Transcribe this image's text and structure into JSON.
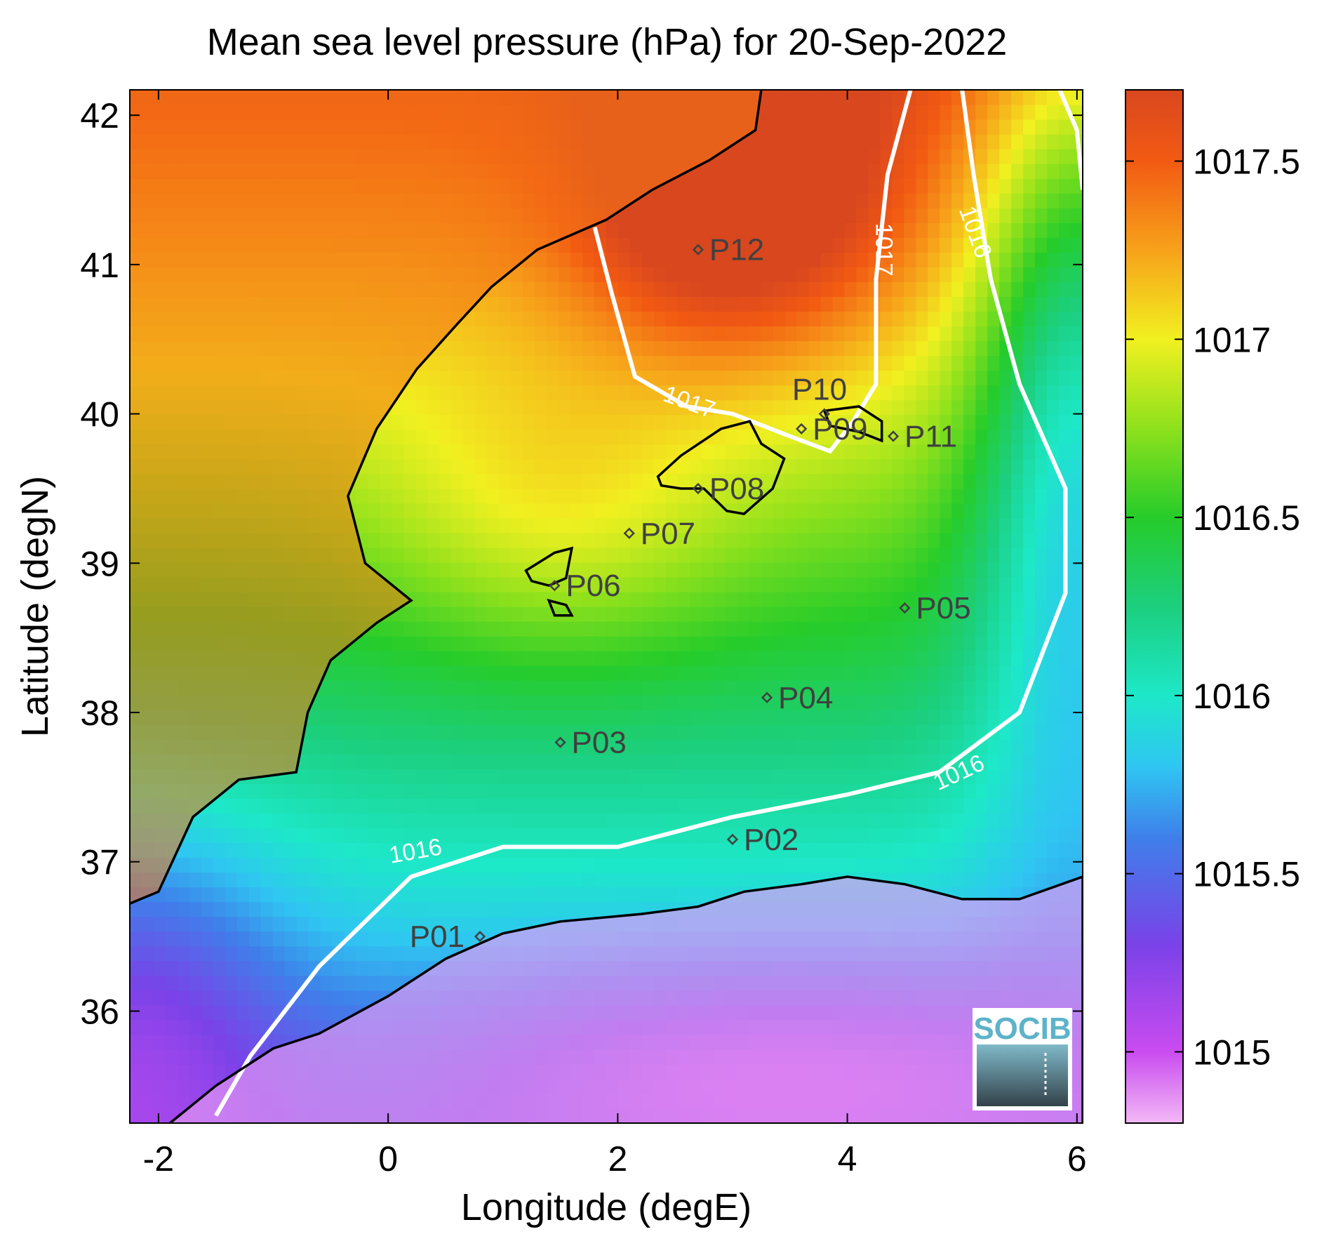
{
  "title": "Mean sea level pressure (hPa) for 20-Sep-2022",
  "logo_text": "SOCIB",
  "chart_data": {
    "type": "heatmap",
    "title": "Mean sea level pressure (hPa) for 20-Sep-2022",
    "xlabel": "Longitude (degE)",
    "ylabel": "Latitude (degN)",
    "xlim": [
      -2.25,
      6.05
    ],
    "ylim": [
      35.25,
      42.17
    ],
    "x_ticks": [
      {
        "value": -2,
        "label": "-2"
      },
      {
        "value": 0,
        "label": "0"
      },
      {
        "value": 2,
        "label": "2"
      },
      {
        "value": 4,
        "label": "4"
      },
      {
        "value": 6,
        "label": "6"
      }
    ],
    "y_ticks": [
      {
        "value": 36,
        "label": "36"
      },
      {
        "value": 37,
        "label": "37"
      },
      {
        "value": 38,
        "label": "38"
      },
      {
        "value": 39,
        "label": "39"
      },
      {
        "value": 40,
        "label": "40"
      },
      {
        "value": 41,
        "label": "41"
      },
      {
        "value": 42,
        "label": "42"
      }
    ],
    "colorbar": {
      "range": [
        1014.8,
        1017.7
      ],
      "ticks": [
        {
          "value": 1015,
          "label": "1015"
        },
        {
          "value": 1015.5,
          "label": "1015.5"
        },
        {
          "value": 1016,
          "label": "1016"
        },
        {
          "value": 1016.5,
          "label": "1016.5"
        },
        {
          "value": 1017,
          "label": "1017"
        },
        {
          "value": 1017.5,
          "label": "1017.5"
        }
      ],
      "colors": [
        {
          "value": 1014.8,
          "color": "#f2b8f5"
        },
        {
          "value": 1015.0,
          "color": "#c94cf0"
        },
        {
          "value": 1015.3,
          "color": "#7a42e8"
        },
        {
          "value": 1015.6,
          "color": "#3f7fea"
        },
        {
          "value": 1015.8,
          "color": "#2fc6f2"
        },
        {
          "value": 1016.0,
          "color": "#1de8c8"
        },
        {
          "value": 1016.25,
          "color": "#1ccf7e"
        },
        {
          "value": 1016.5,
          "color": "#26cc2a"
        },
        {
          "value": 1016.75,
          "color": "#8ee11c"
        },
        {
          "value": 1017.0,
          "color": "#f1f020"
        },
        {
          "value": 1017.25,
          "color": "#f7a21a"
        },
        {
          "value": 1017.5,
          "color": "#f25a12"
        },
        {
          "value": 1017.7,
          "color": "#d9471f"
        }
      ]
    },
    "contours": [
      {
        "level": 1016,
        "label": "1016"
      },
      {
        "level": 1017,
        "label": "1017"
      }
    ],
    "points": [
      {
        "name": "P01",
        "lon": 0.8,
        "lat": 36.5
      },
      {
        "name": "P02",
        "lon": 3.0,
        "lat": 37.15
      },
      {
        "name": "P03",
        "lon": 1.5,
        "lat": 37.8
      },
      {
        "name": "P04",
        "lon": 3.3,
        "lat": 38.1
      },
      {
        "name": "P05",
        "lon": 4.5,
        "lat": 38.7
      },
      {
        "name": "P06",
        "lon": 1.45,
        "lat": 38.85
      },
      {
        "name": "P07",
        "lon": 2.1,
        "lat": 39.2
      },
      {
        "name": "P08",
        "lon": 2.7,
        "lat": 39.5
      },
      {
        "name": "P09",
        "lon": 3.6,
        "lat": 39.9
      },
      {
        "name": "P10",
        "lon": 3.8,
        "lat": 40.0
      },
      {
        "name": "P11",
        "lon": 4.4,
        "lat": 39.85
      },
      {
        "name": "P12",
        "lon": 2.7,
        "lat": 41.1
      }
    ]
  }
}
